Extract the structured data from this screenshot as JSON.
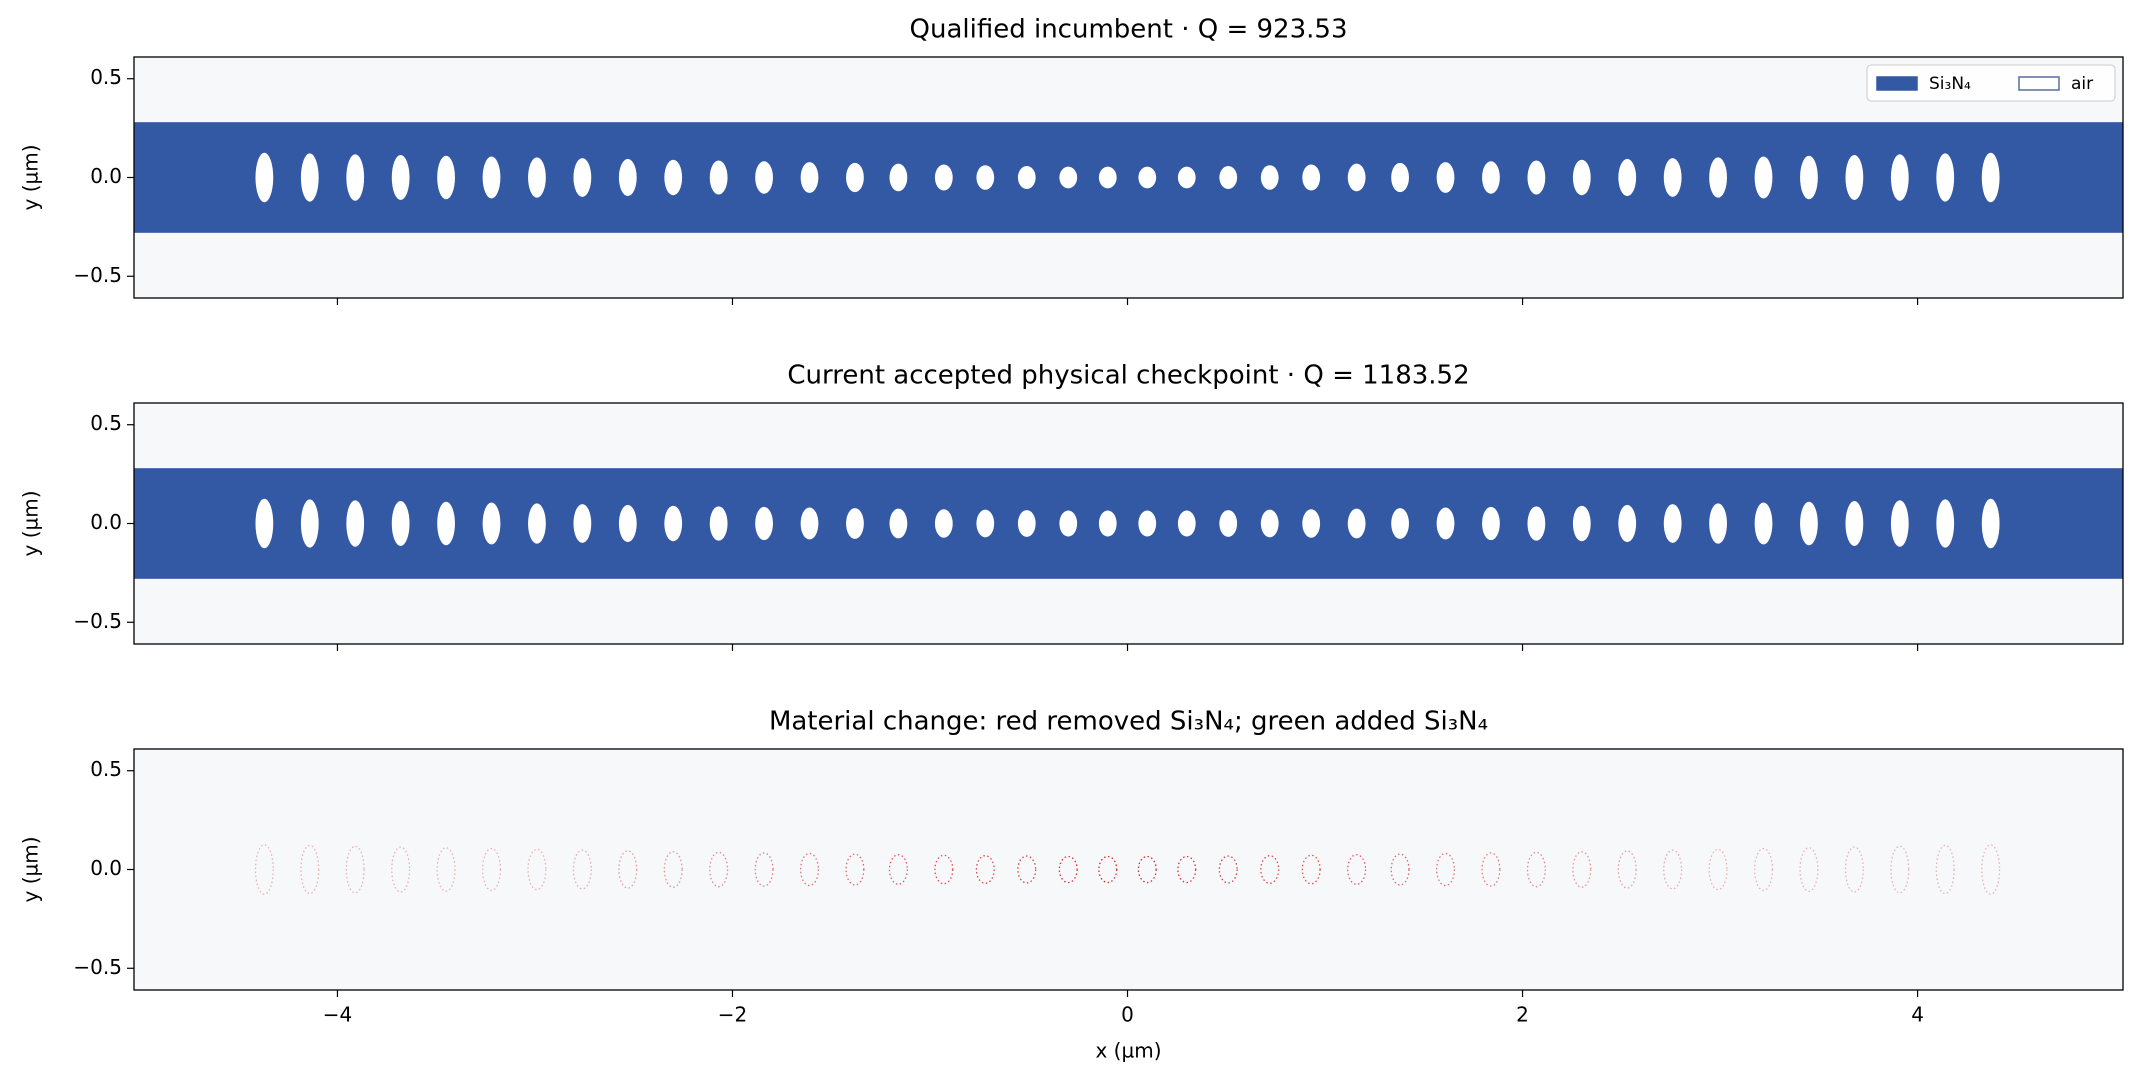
{
  "chart_data": [
    {
      "type": "geometry",
      "title": "Qualified incumbent · Q = 923.53",
      "ylabel": "y (µm)",
      "xlim": [
        -5.03,
        5.04
      ],
      "ylim": [
        -0.61,
        0.61
      ],
      "xticks": [
        -4,
        -2,
        0,
        2,
        4
      ],
      "yticks": [
        {
          "value": -0.5,
          "label": "−0.5"
        },
        {
          "value": 0,
          "label": "0.0"
        },
        {
          "value": 0.5,
          "label": "0.5"
        }
      ],
      "waveguide_half_width": 0.28,
      "color": "#3358a4",
      "hole_rx": 0.045,
      "hole_x": [
        -4.37,
        -4.14,
        -3.91,
        -3.68,
        -3.45,
        -3.22,
        -2.99,
        -2.76,
        -2.53,
        -2.3,
        -2.07,
        -1.84,
        -1.61,
        -1.38,
        -1.16,
        -0.93,
        -0.72,
        -0.51,
        -0.3,
        -0.1,
        0.1,
        0.3,
        0.51,
        0.72,
        0.93,
        1.16,
        1.38,
        1.61,
        1.84,
        2.07,
        2.3,
        2.53,
        2.76,
        2.99,
        3.22,
        3.45,
        3.68,
        3.91,
        4.14,
        4.37
      ],
      "hole_ry": [
        0.125,
        0.122,
        0.118,
        0.114,
        0.11,
        0.106,
        0.102,
        0.098,
        0.094,
        0.09,
        0.086,
        0.082,
        0.078,
        0.074,
        0.07,
        0.066,
        0.062,
        0.058,
        0.055,
        0.055,
        0.055,
        0.055,
        0.058,
        0.062,
        0.066,
        0.07,
        0.074,
        0.078,
        0.082,
        0.086,
        0.09,
        0.094,
        0.098,
        0.102,
        0.106,
        0.11,
        0.114,
        0.118,
        0.122,
        0.125
      ],
      "legend": [
        {
          "name": "Si₃N₄",
          "color": "#3358a4"
        },
        {
          "name": "air",
          "color": "#ffffff"
        }
      ],
      "legend_loc": "upper right"
    },
    {
      "type": "geometry",
      "title": "Current accepted physical checkpoint · Q = 1183.52",
      "ylabel": "y (µm)",
      "xlim": [
        -5.03,
        5.04
      ],
      "ylim": [
        -0.61,
        0.61
      ],
      "xticks": [
        -4,
        -2,
        0,
        2,
        4
      ],
      "yticks": [
        {
          "value": -0.5,
          "label": "−0.5"
        },
        {
          "value": 0,
          "label": "0.0"
        },
        {
          "value": 0.5,
          "label": "0.5"
        }
      ],
      "waveguide_half_width": 0.28,
      "color": "#3358a4",
      "hole_rx": 0.045,
      "hole_x": [
        -4.37,
        -4.14,
        -3.91,
        -3.68,
        -3.45,
        -3.22,
        -2.99,
        -2.76,
        -2.53,
        -2.3,
        -2.07,
        -1.84,
        -1.61,
        -1.38,
        -1.16,
        -0.93,
        -0.72,
        -0.51,
        -0.3,
        -0.1,
        0.1,
        0.3,
        0.51,
        0.72,
        0.93,
        1.16,
        1.38,
        1.61,
        1.84,
        2.07,
        2.3,
        2.53,
        2.76,
        2.99,
        3.22,
        3.45,
        3.68,
        3.91,
        4.14,
        4.37
      ],
      "hole_ry": [
        0.125,
        0.122,
        0.118,
        0.114,
        0.11,
        0.106,
        0.102,
        0.098,
        0.094,
        0.09,
        0.087,
        0.084,
        0.081,
        0.078,
        0.075,
        0.072,
        0.07,
        0.068,
        0.066,
        0.066,
        0.066,
        0.066,
        0.068,
        0.07,
        0.072,
        0.075,
        0.078,
        0.081,
        0.084,
        0.087,
        0.09,
        0.094,
        0.098,
        0.102,
        0.106,
        0.11,
        0.114,
        0.118,
        0.122,
        0.125
      ]
    },
    {
      "type": "difference",
      "title": "Material change: red removed Si₃N₄; green added Si₃N₄",
      "ylabel": "y (µm)",
      "xlabel": "x (µm)",
      "xlim": [
        -5.03,
        5.04
      ],
      "ylim": [
        -0.61,
        0.61
      ],
      "xticks": [
        {
          "value": -4,
          "label": "−4"
        },
        {
          "value": -2,
          "label": "−2"
        },
        0,
        2,
        4
      ],
      "yticks": [
        {
          "value": -0.5,
          "label": "−0.5"
        },
        {
          "value": 0,
          "label": "0.0"
        },
        {
          "value": 0.5,
          "label": "0.5"
        }
      ],
      "color": "#d62728",
      "hole_rx": 0.045,
      "hole_x": [
        -4.37,
        -4.14,
        -3.91,
        -3.68,
        -3.45,
        -3.22,
        -2.99,
        -2.76,
        -2.53,
        -2.3,
        -2.07,
        -1.84,
        -1.61,
        -1.38,
        -1.16,
        -0.93,
        -0.72,
        -0.51,
        -0.3,
        -0.1,
        0.1,
        0.3,
        0.51,
        0.72,
        0.93,
        1.16,
        1.38,
        1.61,
        1.84,
        2.07,
        2.3,
        2.53,
        2.76,
        2.99,
        3.22,
        3.45,
        3.68,
        3.91,
        4.14,
        4.37
      ],
      "hole_ry": [
        0.125,
        0.122,
        0.118,
        0.114,
        0.11,
        0.106,
        0.102,
        0.098,
        0.094,
        0.09,
        0.087,
        0.084,
        0.081,
        0.078,
        0.075,
        0.072,
        0.07,
        0.068,
        0.066,
        0.066,
        0.066,
        0.066,
        0.068,
        0.07,
        0.072,
        0.075,
        0.078,
        0.081,
        0.084,
        0.087,
        0.09,
        0.094,
        0.098,
        0.102,
        0.106,
        0.11,
        0.114,
        0.118,
        0.122,
        0.125
      ]
    }
  ]
}
